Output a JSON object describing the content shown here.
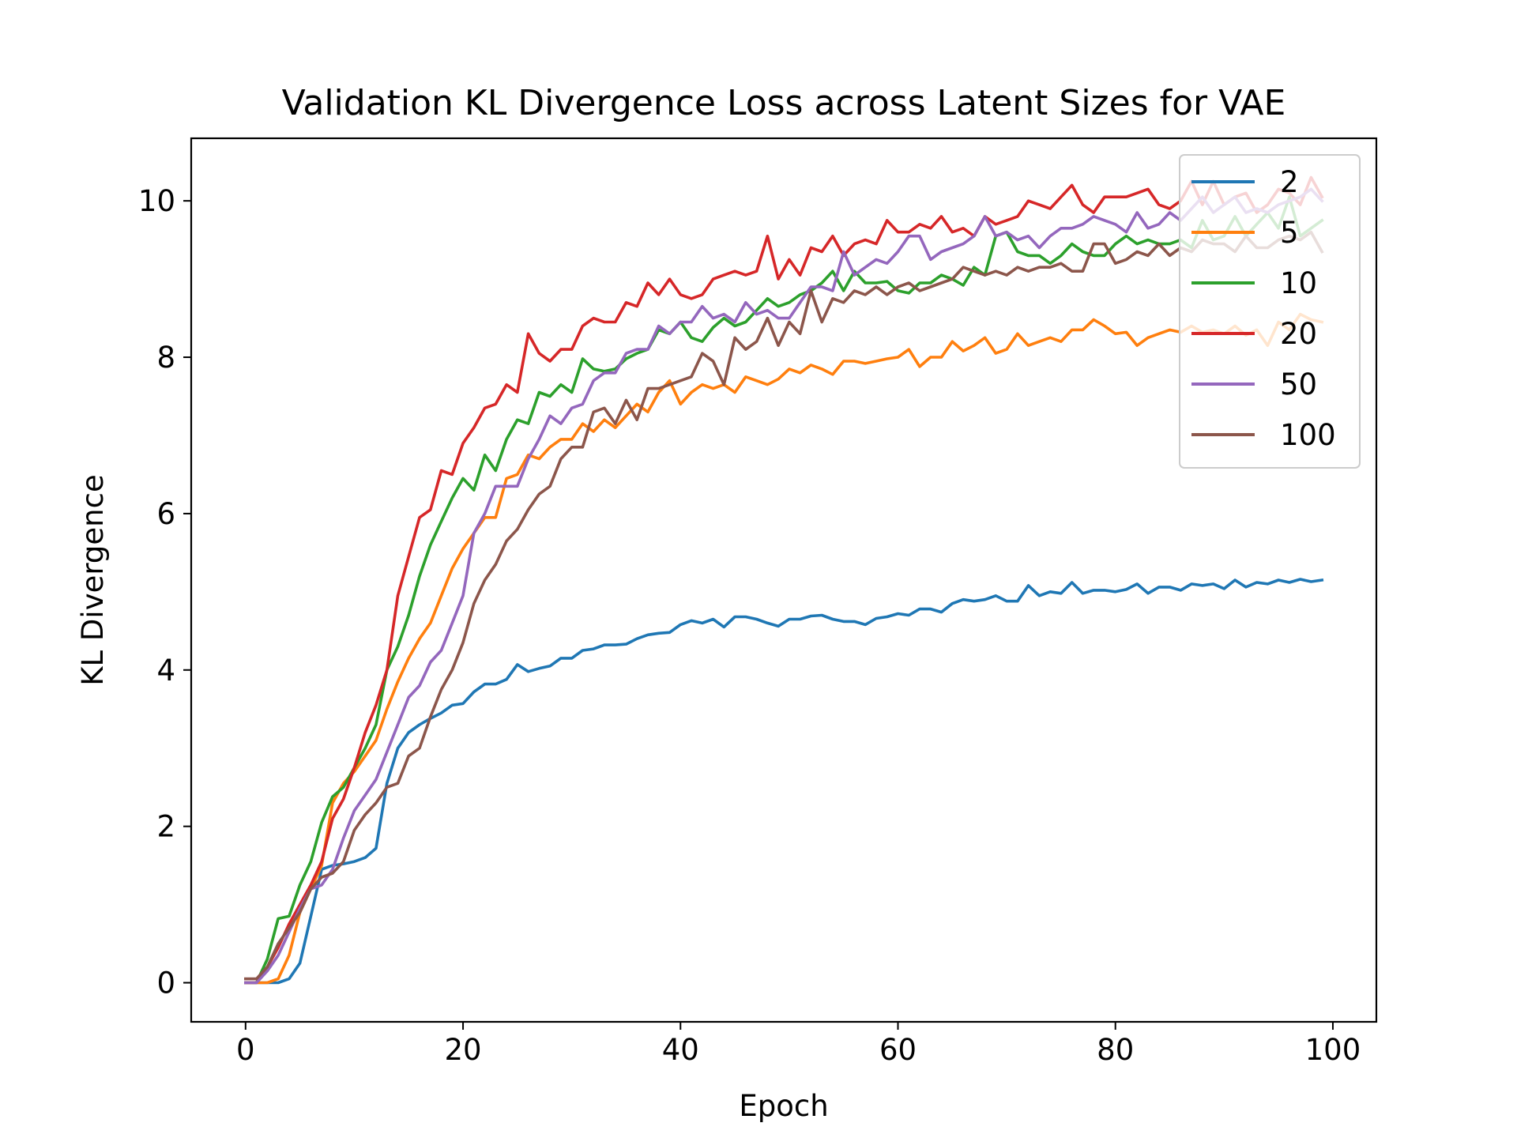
{
  "chart_data": {
    "type": "line",
    "title": "Validation KL Divergence Loss across Latent Sizes for VAE",
    "xlabel": "Epoch",
    "ylabel": "KL Divergence",
    "xlim": [
      -5,
      104
    ],
    "ylim": [
      -0.5,
      10.8
    ],
    "xticks": [
      0,
      20,
      40,
      60,
      80,
      100
    ],
    "yticks": [
      0,
      2,
      4,
      6,
      8,
      10
    ],
    "xtick_labels": [
      "0",
      "20",
      "40",
      "60",
      "80",
      "100"
    ],
    "ytick_labels": [
      "0",
      "2",
      "4",
      "6",
      "8",
      "10"
    ],
    "legend_position": "top-right",
    "grid": false,
    "x": [
      0,
      1,
      2,
      3,
      4,
      5,
      6,
      7,
      8,
      9,
      10,
      11,
      12,
      13,
      14,
      15,
      16,
      17,
      18,
      19,
      20,
      21,
      22,
      23,
      24,
      25,
      26,
      27,
      28,
      29,
      30,
      31,
      32,
      33,
      34,
      35,
      36,
      37,
      38,
      39,
      40,
      41,
      42,
      43,
      44,
      45,
      46,
      47,
      48,
      49,
      50,
      51,
      52,
      53,
      54,
      55,
      56,
      57,
      58,
      59,
      60,
      61,
      62,
      63,
      64,
      65,
      66,
      67,
      68,
      69,
      70,
      71,
      72,
      73,
      74,
      75,
      76,
      77,
      78,
      79,
      80,
      81,
      82,
      83,
      84,
      85,
      86,
      87,
      88,
      89,
      90,
      91,
      92,
      93,
      94,
      95,
      96,
      97,
      98,
      99
    ],
    "series": [
      {
        "name": "2",
        "color": "#1f77b4",
        "values": [
          0.0,
          0.0,
          0.0,
          0.0,
          0.05,
          0.25,
          0.85,
          1.45,
          1.5,
          1.52,
          1.55,
          1.6,
          1.72,
          2.55,
          3.0,
          3.2,
          3.3,
          3.38,
          3.45,
          3.55,
          3.57,
          3.72,
          3.82,
          3.82,
          3.88,
          4.07,
          3.98,
          4.02,
          4.05,
          4.15,
          4.15,
          4.25,
          4.27,
          4.32,
          4.32,
          4.33,
          4.4,
          4.45,
          4.47,
          4.48,
          4.58,
          4.63,
          4.6,
          4.65,
          4.55,
          4.68,
          4.68,
          4.65,
          4.6,
          4.56,
          4.65,
          4.65,
          4.69,
          4.7,
          4.65,
          4.62,
          4.62,
          4.58,
          4.66,
          4.68,
          4.72,
          4.7,
          4.78,
          4.78,
          4.74,
          4.85,
          4.9,
          4.88,
          4.9,
          4.95,
          4.88,
          4.88,
          5.08,
          4.95,
          5.0,
          4.98,
          5.12,
          4.98,
          5.02,
          5.02,
          5.0,
          5.03,
          5.1,
          4.98,
          5.06,
          5.06,
          5.02,
          5.1,
          5.08,
          5.1,
          5.04,
          5.15,
          5.06,
          5.12,
          5.1,
          5.15,
          5.12,
          5.16,
          5.13,
          5.15
        ]
      },
      {
        "name": "5",
        "color": "#ff7f0e",
        "values": [
          0.0,
          0.0,
          0.0,
          0.05,
          0.35,
          0.9,
          1.2,
          1.5,
          2.3,
          2.55,
          2.7,
          2.9,
          3.1,
          3.5,
          3.85,
          4.15,
          4.4,
          4.6,
          4.95,
          5.3,
          5.55,
          5.75,
          5.95,
          5.95,
          6.45,
          6.5,
          6.75,
          6.7,
          6.85,
          6.95,
          6.95,
          7.15,
          7.05,
          7.2,
          7.1,
          7.25,
          7.4,
          7.3,
          7.55,
          7.7,
          7.4,
          7.55,
          7.65,
          7.6,
          7.65,
          7.55,
          7.75,
          7.7,
          7.65,
          7.72,
          7.85,
          7.8,
          7.9,
          7.85,
          7.78,
          7.95,
          7.95,
          7.92,
          7.95,
          7.98,
          8.0,
          8.1,
          7.88,
          8.0,
          8.0,
          8.2,
          8.08,
          8.15,
          8.25,
          8.05,
          8.1,
          8.3,
          8.15,
          8.2,
          8.25,
          8.2,
          8.35,
          8.35,
          8.48,
          8.4,
          8.3,
          8.32,
          8.15,
          8.25,
          8.3,
          8.35,
          8.32,
          8.4,
          8.32,
          8.35,
          8.3,
          8.4,
          8.28,
          8.35,
          8.15,
          8.45,
          8.35,
          8.55,
          8.48,
          8.45
        ]
      },
      {
        "name": "10",
        "color": "#2ca02c",
        "values": [
          0.0,
          0.0,
          0.3,
          0.82,
          0.85,
          1.25,
          1.55,
          2.05,
          2.38,
          2.5,
          2.75,
          3.0,
          3.3,
          4.0,
          4.3,
          4.7,
          5.2,
          5.6,
          5.9,
          6.2,
          6.45,
          6.3,
          6.75,
          6.55,
          6.95,
          7.2,
          7.15,
          7.55,
          7.5,
          7.65,
          7.55,
          7.98,
          7.85,
          7.82,
          7.85,
          7.98,
          8.05,
          8.1,
          8.35,
          8.3,
          8.45,
          8.25,
          8.2,
          8.38,
          8.5,
          8.4,
          8.45,
          8.6,
          8.75,
          8.65,
          8.7,
          8.8,
          8.85,
          8.95,
          9.1,
          8.85,
          9.1,
          8.95,
          8.95,
          8.97,
          8.85,
          8.82,
          8.95,
          8.95,
          9.05,
          9.0,
          8.92,
          9.15,
          9.05,
          9.55,
          9.6,
          9.35,
          9.3,
          9.3,
          9.2,
          9.3,
          9.45,
          9.35,
          9.3,
          9.3,
          9.45,
          9.55,
          9.45,
          9.5,
          9.45,
          9.45,
          9.5,
          9.4,
          9.75,
          9.5,
          9.55,
          9.8,
          9.55,
          9.7,
          9.85,
          9.65,
          10.05,
          9.55,
          9.65,
          9.75
        ]
      },
      {
        "name": "20",
        "color": "#d62728",
        "values": [
          0.0,
          0.0,
          0.2,
          0.45,
          0.75,
          1.0,
          1.25,
          1.55,
          2.1,
          2.35,
          2.75,
          3.2,
          3.55,
          4.0,
          4.95,
          5.45,
          5.95,
          6.05,
          6.55,
          6.5,
          6.9,
          7.1,
          7.35,
          7.4,
          7.65,
          7.55,
          8.3,
          8.05,
          7.95,
          8.1,
          8.1,
          8.4,
          8.5,
          8.45,
          8.45,
          8.7,
          8.65,
          8.95,
          8.8,
          9.0,
          8.8,
          8.75,
          8.8,
          9.0,
          9.05,
          9.1,
          9.05,
          9.1,
          9.55,
          9.0,
          9.25,
          9.05,
          9.4,
          9.35,
          9.55,
          9.3,
          9.45,
          9.5,
          9.45,
          9.75,
          9.6,
          9.6,
          9.7,
          9.65,
          9.8,
          9.6,
          9.65,
          9.55,
          9.8,
          9.7,
          9.75,
          9.8,
          10.0,
          9.95,
          9.9,
          10.05,
          10.2,
          9.95,
          9.85,
          10.05,
          10.05,
          10.05,
          10.1,
          10.15,
          9.95,
          9.9,
          10.0,
          10.25,
          9.95,
          10.25,
          9.95,
          10.05,
          10.1,
          9.85,
          9.95,
          10.15,
          10.1,
          9.95,
          10.3,
          10.05
        ]
      },
      {
        "name": "50",
        "color": "#9467bd",
        "values": [
          0.0,
          0.0,
          0.15,
          0.35,
          0.65,
          0.95,
          1.2,
          1.25,
          1.45,
          1.85,
          2.2,
          2.4,
          2.6,
          2.95,
          3.3,
          3.65,
          3.8,
          4.1,
          4.25,
          4.6,
          4.95,
          5.75,
          6.0,
          6.35,
          6.35,
          6.35,
          6.7,
          6.95,
          7.25,
          7.15,
          7.35,
          7.4,
          7.7,
          7.8,
          7.8,
          8.05,
          8.1,
          8.1,
          8.4,
          8.3,
          8.45,
          8.45,
          8.65,
          8.5,
          8.55,
          8.45,
          8.7,
          8.55,
          8.6,
          8.5,
          8.5,
          8.7,
          8.9,
          8.9,
          8.85,
          9.35,
          9.05,
          9.15,
          9.25,
          9.2,
          9.35,
          9.55,
          9.55,
          9.25,
          9.35,
          9.4,
          9.45,
          9.55,
          9.8,
          9.55,
          9.6,
          9.5,
          9.55,
          9.4,
          9.55,
          9.65,
          9.65,
          9.7,
          9.8,
          9.75,
          9.7,
          9.6,
          9.85,
          9.65,
          9.7,
          9.85,
          9.75,
          9.9,
          10.05,
          9.85,
          9.95,
          10.05,
          9.85,
          9.9,
          9.85,
          9.95,
          10.0,
          10.05,
          10.15,
          10.0
        ]
      },
      {
        "name": "100",
        "color": "#8c564b",
        "values": [
          0.05,
          0.05,
          0.2,
          0.5,
          0.7,
          0.9,
          1.2,
          1.35,
          1.4,
          1.55,
          1.95,
          2.15,
          2.3,
          2.5,
          2.55,
          2.9,
          3.0,
          3.4,
          3.75,
          4.0,
          4.35,
          4.85,
          5.15,
          5.35,
          5.65,
          5.8,
          6.05,
          6.25,
          6.35,
          6.7,
          6.85,
          6.85,
          7.3,
          7.35,
          7.15,
          7.45,
          7.2,
          7.6,
          7.6,
          7.65,
          7.7,
          7.75,
          8.05,
          7.95,
          7.65,
          8.25,
          8.1,
          8.2,
          8.5,
          8.15,
          8.45,
          8.3,
          8.85,
          8.45,
          8.75,
          8.7,
          8.85,
          8.8,
          8.9,
          8.8,
          8.9,
          8.95,
          8.85,
          8.9,
          8.95,
          9.0,
          9.15,
          9.1,
          9.05,
          9.1,
          9.05,
          9.15,
          9.1,
          9.15,
          9.15,
          9.2,
          9.1,
          9.1,
          9.45,
          9.45,
          9.2,
          9.25,
          9.35,
          9.3,
          9.45,
          9.3,
          9.4,
          9.35,
          9.5,
          9.45,
          9.45,
          9.35,
          9.55,
          9.4,
          9.4,
          9.5,
          9.55,
          9.5,
          9.6,
          9.35
        ]
      }
    ]
  }
}
